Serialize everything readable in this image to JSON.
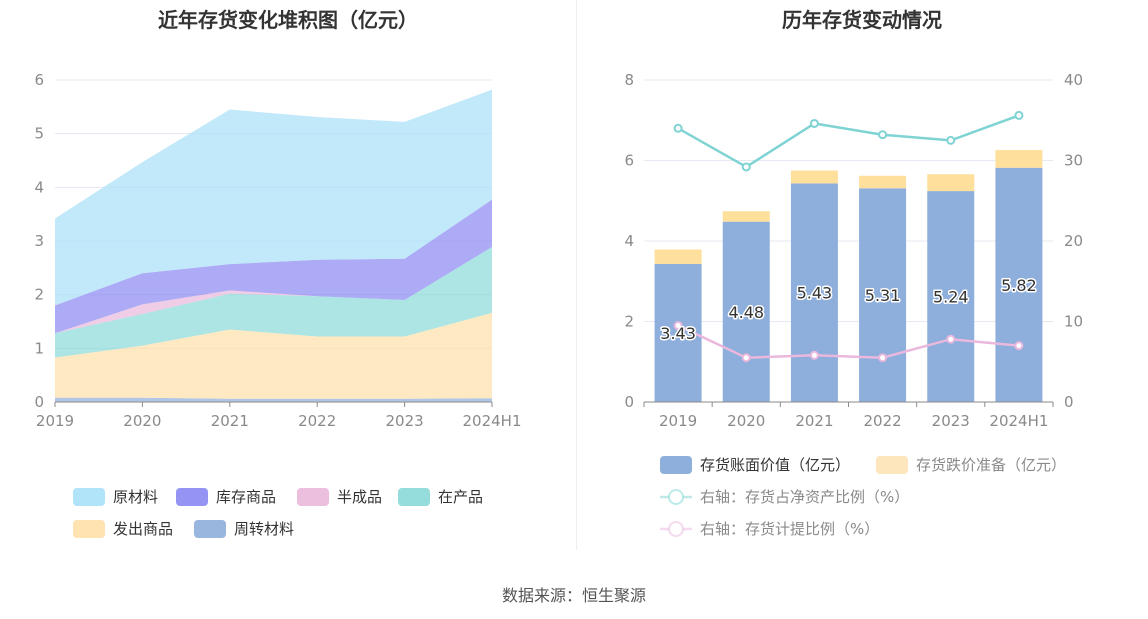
{
  "source_label": "数据来源：恒生聚源",
  "chart_data": [
    {
      "type": "area",
      "title": "近年存货变化堆积图（亿元）",
      "categories": [
        "2019",
        "2020",
        "2021",
        "2022",
        "2023",
        "2024H1"
      ],
      "ylim": [
        0,
        6
      ],
      "yticks": [
        "0",
        "1",
        "2",
        "3",
        "4",
        "5",
        "6"
      ],
      "stacked": true,
      "series": [
        {
          "name": "周转材料",
          "color": "#8eaedc",
          "values": [
            0.08,
            0.08,
            0.06,
            0.06,
            0.06,
            0.07
          ]
        },
        {
          "name": "发出商品",
          "color": "#ffe0a8",
          "values": [
            0.75,
            0.97,
            1.29,
            1.16,
            1.16,
            1.59
          ]
        },
        {
          "name": "在产品",
          "color": "#8ad8d8",
          "values": [
            0.45,
            0.59,
            0.67,
            0.75,
            0.68,
            1.23
          ]
        },
        {
          "name": "半成品",
          "color": "#eab8dc",
          "values": [
            0.0,
            0.18,
            0.06,
            0.0,
            0.0,
            0.0
          ]
        },
        {
          "name": "库存商品",
          "color": "#8a87f2",
          "values": [
            0.52,
            0.58,
            0.49,
            0.68,
            0.77,
            0.88
          ]
        },
        {
          "name": "原材料",
          "color": "#a8e0f8",
          "values": [
            1.62,
            2.07,
            2.88,
            2.66,
            2.55,
            2.05
          ]
        }
      ],
      "legend": [
        "原材料",
        "库存商品",
        "半成品",
        "在产品",
        "发出商品",
        "周转材料"
      ],
      "legend_placement": "bottom"
    },
    {
      "type": "bar+line",
      "title": "历年存货变动情况",
      "categories": [
        "2019",
        "2020",
        "2021",
        "2022",
        "2023",
        "2024H1"
      ],
      "ylim_left": [
        0,
        8
      ],
      "yticks_left": [
        "0",
        "2",
        "4",
        "6",
        "8"
      ],
      "ylim_right": [
        0,
        40
      ],
      "yticks_right": [
        "0",
        "10",
        "20",
        "30",
        "40"
      ],
      "bars": [
        {
          "name": "存货账面价值（亿元）",
          "color": "#8eaedc",
          "values": [
            3.43,
            4.48,
            5.43,
            5.31,
            5.24,
            5.82
          ],
          "labels": [
            "3.43",
            "4.48",
            "5.43",
            "5.31",
            "5.24",
            "5.82"
          ]
        },
        {
          "name": "存货跌价准备（亿元）",
          "color": "#ffdf9c",
          "values": [
            0.36,
            0.26,
            0.32,
            0.31,
            0.42,
            0.44
          ]
        }
      ],
      "lines": [
        {
          "name": "右轴：存货占净资产比例（%）",
          "color": "#7fd3d3",
          "values": [
            34.0,
            29.2,
            34.6,
            33.2,
            32.5,
            35.6
          ]
        },
        {
          "name": "右轴：存货计提比例（%）",
          "color": "#eab8dc",
          "values": [
            9.5,
            5.5,
            5.8,
            5.5,
            7.8,
            7.0
          ]
        }
      ],
      "legend_placement": "bottom"
    }
  ]
}
